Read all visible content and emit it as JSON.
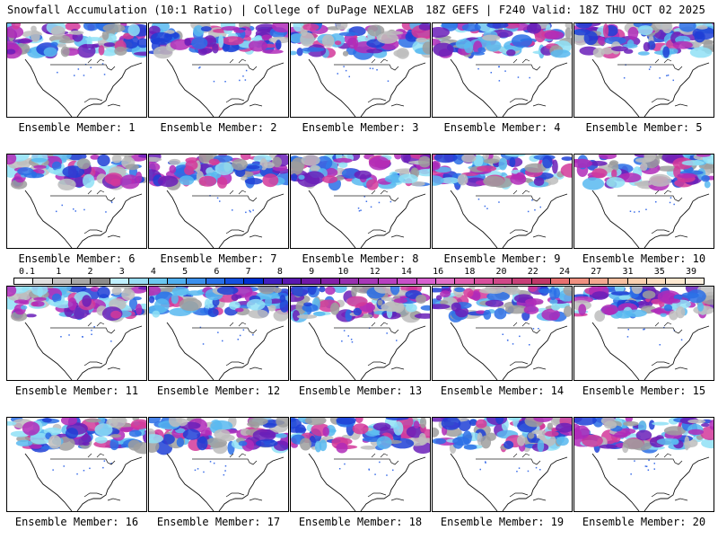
{
  "header": {
    "left": "Snowfall Accumulation (10:1 Ratio) | College of DuPage NEXLAB",
    "right": "18Z GEFS | F240 Valid: 18Z THU OCT 02 2025"
  },
  "members": [
    "Ensemble Member: 1",
    "Ensemble Member: 2",
    "Ensemble Member: 3",
    "Ensemble Member: 4",
    "Ensemble Member: 5",
    "Ensemble Member: 6",
    "Ensemble Member: 7",
    "Ensemble Member: 8",
    "Ensemble Member: 9",
    "Ensemble Member: 10",
    "Ensemble Member: 11",
    "Ensemble Member: 12",
    "Ensemble Member: 13",
    "Ensemble Member: 14",
    "Ensemble Member: 15",
    "Ensemble Member: 16",
    "Ensemble Member: 17",
    "Ensemble Member: 18",
    "Ensemble Member: 19",
    "Ensemble Member: 20"
  ],
  "colorbar": {
    "labels": [
      "0.1",
      "1",
      "2",
      "3",
      "4",
      "5",
      "6",
      "7",
      "8",
      "9",
      "10",
      "12",
      "14",
      "16",
      "18",
      "20",
      "22",
      "24",
      "27",
      "31",
      "35",
      "39"
    ],
    "colors": [
      "#ffffff",
      "#e0e0e0",
      "#c4c4c4",
      "#a8a8a8",
      "#8c8c8c",
      "#c0f0ff",
      "#98dcf4",
      "#6cc8f0",
      "#50b0f0",
      "#3c90ec",
      "#2870e8",
      "#1450e0",
      "#0030d0",
      "#4020c0",
      "#5a18b0",
      "#7018a8",
      "#8420a8",
      "#9830b0",
      "#a838b8",
      "#b840c0",
      "#c850c8",
      "#d860d0",
      "#e070c8",
      "#e060b0",
      "#d8509c",
      "#d04888",
      "#c84078",
      "#c03868",
      "#e87070",
      "#f09080",
      "#f4a890",
      "#f8c0a0",
      "#fad0b0",
      "#fcdcc0",
      "#fde8d0",
      "#fef0e0"
    ]
  }
}
